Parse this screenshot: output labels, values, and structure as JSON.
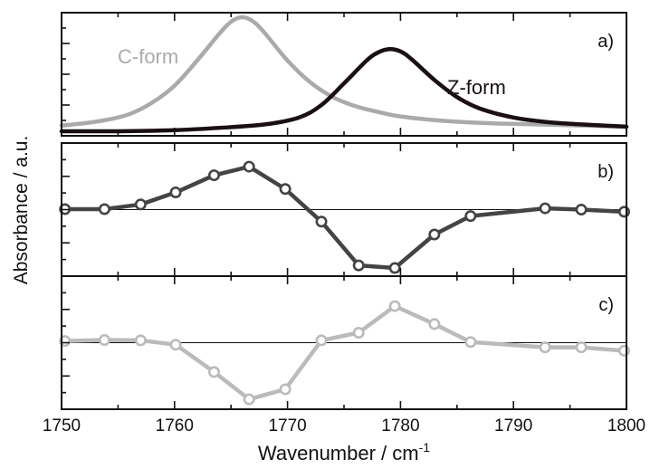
{
  "chart_data": [
    {
      "panel": "a",
      "type": "line",
      "panel_label": "a)",
      "xlim": [
        1750,
        1800
      ],
      "series": [
        {
          "name": "C-form",
          "color": "#aaaaaa",
          "x": [
            1750,
            1752,
            1754,
            1756,
            1758,
            1760,
            1762,
            1764,
            1765,
            1766,
            1767,
            1768,
            1770,
            1772,
            1774,
            1776,
            1778,
            1780,
            1784,
            1788,
            1792,
            1796,
            1800
          ],
          "y": [
            0.05,
            0.07,
            0.1,
            0.15,
            0.25,
            0.4,
            0.62,
            0.86,
            0.96,
            1.0,
            0.96,
            0.86,
            0.62,
            0.43,
            0.3,
            0.22,
            0.17,
            0.13,
            0.09,
            0.07,
            0.06,
            0.05,
            0.04
          ]
        },
        {
          "name": "Z-form",
          "color": "#1a1012",
          "x": [
            1750,
            1755,
            1760,
            1764,
            1768,
            1771,
            1773,
            1775,
            1777,
            1778,
            1779,
            1780,
            1781,
            1783,
            1785,
            1787,
            1790,
            1793,
            1796,
            1800
          ],
          "y": [
            0.0,
            0.0,
            0.01,
            0.03,
            0.06,
            0.12,
            0.23,
            0.42,
            0.62,
            0.69,
            0.72,
            0.7,
            0.63,
            0.45,
            0.3,
            0.2,
            0.12,
            0.08,
            0.06,
            0.04
          ]
        }
      ]
    },
    {
      "panel": "b",
      "type": "line",
      "panel_label": "b)",
      "xlim": [
        1750,
        1800
      ],
      "baseline": 0,
      "series": [
        {
          "color": "#444444",
          "x": [
            1750.3,
            1753.8,
            1757,
            1760.1,
            1763.5,
            1766.6,
            1769.8,
            1773,
            1776.3,
            1779.5,
            1783,
            1786.2,
            1792.8,
            1796,
            1799.8
          ],
          "y": [
            0.01,
            0.01,
            0.12,
            0.4,
            0.8,
            1.0,
            0.48,
            -0.28,
            -1.3,
            -1.36,
            -0.58,
            -0.15,
            0.03,
            0.0,
            -0.05
          ]
        }
      ]
    },
    {
      "panel": "c",
      "type": "line",
      "panel_label": "c)",
      "xlim": [
        1750,
        1800
      ],
      "xlabel": "Wavenumber / cm-1",
      "xticks": [
        "1750",
        "1760",
        "1770",
        "1780",
        "1790",
        "1800"
      ],
      "baseline": 0,
      "series": [
        {
          "color": "#bbbbbb",
          "x": [
            1750.3,
            1753.8,
            1757,
            1760.1,
            1763.5,
            1766.6,
            1769.8,
            1773,
            1776.3,
            1779.5,
            1783,
            1786.2,
            1792.8,
            1796,
            1799.8
          ],
          "y": [
            0.05,
            0.08,
            0.07,
            -0.06,
            -0.88,
            -1.7,
            -1.4,
            0.07,
            0.3,
            1.1,
            0.56,
            0.02,
            -0.14,
            -0.14,
            -0.24
          ]
        }
      ]
    }
  ],
  "ylabel": "Absorbance / a.u.",
  "series_labels": {
    "c_form": "C-form",
    "z_form": "Z-form"
  },
  "xlabel_main": "Wavenumber / cm",
  "xlabel_sup": "-1",
  "colors": {
    "axis": "#111111",
    "baseline": "#111111"
  }
}
